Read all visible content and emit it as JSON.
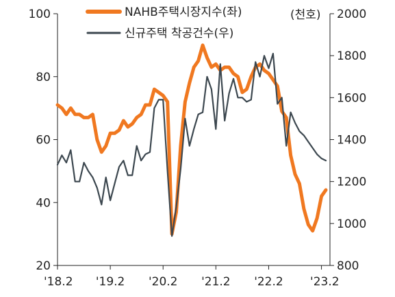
{
  "chart_data": {
    "type": "line",
    "title": "",
    "unit_label": "(천호)",
    "x_tick_labels": [
      "'18.2",
      "'19.2",
      "'20.2",
      "'21.2",
      "'22.2",
      "'23.2"
    ],
    "left_ticks": [
      "100",
      "80",
      "60",
      "40",
      "20"
    ],
    "right_ticks": [
      "2000",
      "1800",
      "1600",
      "1400",
      "1200",
      "1000",
      "800"
    ],
    "left_ylim": [
      20,
      100
    ],
    "right_ylim": [
      800,
      2000
    ],
    "grid": false,
    "legend_position": "top-center",
    "x": [
      "2018-02",
      "2018-03",
      "2018-04",
      "2018-05",
      "2018-06",
      "2018-07",
      "2018-08",
      "2018-09",
      "2018-10",
      "2018-11",
      "2018-12",
      "2019-01",
      "2019-02",
      "2019-03",
      "2019-04",
      "2019-05",
      "2019-06",
      "2019-07",
      "2019-08",
      "2019-09",
      "2019-10",
      "2019-11",
      "2019-12",
      "2020-01",
      "2020-02",
      "2020-03",
      "2020-04",
      "2020-05",
      "2020-06",
      "2020-07",
      "2020-08",
      "2020-09",
      "2020-10",
      "2020-11",
      "2020-12",
      "2021-01",
      "2021-02",
      "2021-03",
      "2021-04",
      "2021-05",
      "2021-06",
      "2021-07",
      "2021-08",
      "2021-09",
      "2021-10",
      "2021-11",
      "2021-12",
      "2022-01",
      "2022-02",
      "2022-03",
      "2022-04",
      "2022-05",
      "2022-06",
      "2022-07",
      "2022-08",
      "2022-09",
      "2022-10",
      "2022-11",
      "2022-12",
      "2023-01",
      "2023-02",
      "2023-03"
    ],
    "series": [
      {
        "name": "NAHB주택시장지수(좌)",
        "axis": "left",
        "color": "#f07820",
        "values": [
          71,
          70,
          68,
          70,
          68,
          68,
          67,
          67,
          68,
          60,
          56,
          58,
          62,
          62,
          63,
          66,
          64,
          65,
          67,
          68,
          71,
          71,
          76,
          75,
          74,
          72,
          30,
          37,
          58,
          72,
          78,
          83,
          85,
          90,
          86,
          83,
          84,
          82,
          83,
          83,
          81,
          80,
          75,
          76,
          80,
          83,
          84,
          82,
          81,
          79,
          77,
          69,
          67,
          55,
          49,
          46,
          38,
          33,
          31,
          35,
          42,
          44
        ]
      },
      {
        "name": "신규주택 착공건수(우)",
        "axis": "right",
        "color": "#3c474f",
        "values": [
          1280,
          1325,
          1290,
          1350,
          1200,
          1200,
          1290,
          1250,
          1220,
          1170,
          1090,
          1220,
          1110,
          1190,
          1270,
          1300,
          1230,
          1230,
          1370,
          1300,
          1330,
          1340,
          1550,
          1590,
          1590,
          1250,
          940,
          1080,
          1260,
          1500,
          1370,
          1450,
          1520,
          1530,
          1700,
          1640,
          1450,
          1760,
          1490,
          1620,
          1690,
          1600,
          1600,
          1580,
          1590,
          1770,
          1700,
          1800,
          1740,
          1810,
          1570,
          1600,
          1370,
          1530,
          1480,
          1440,
          1420,
          1390,
          1360,
          1330,
          1310,
          1300
        ]
      }
    ]
  }
}
